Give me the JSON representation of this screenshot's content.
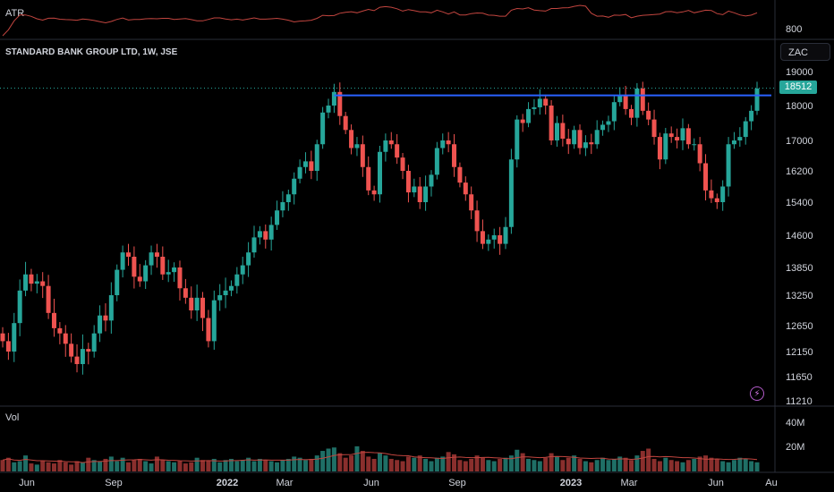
{
  "panes": {
    "atr": {
      "label": "ATR",
      "axis_labels": [
        "800"
      ]
    },
    "main": {
      "title": "STANDARD BANK GROUP LTD, 1W, JSE",
      "currency": "ZAC",
      "last_price": "18512"
    },
    "volume": {
      "label": "Vol",
      "axis_labels": [
        "40M",
        "20M"
      ]
    }
  },
  "colors": {
    "up": "#26a69a",
    "down": "#ef5350",
    "resistance": "#2962ff",
    "ma": "#c2453f",
    "atr": "#c2453f"
  },
  "icons": {
    "alert": "lightning-bolt-icon"
  },
  "chart_data": {
    "type": "candlestick",
    "title": "STANDARD BANK GROUP LTD, 1W, JSE",
    "y_ticks": [
      19000,
      18000,
      17000,
      16200,
      15400,
      14600,
      13850,
      13250,
      12650,
      12150,
      11650,
      11210
    ],
    "y_range": [
      11000,
      19300
    ],
    "x_tick_labels": [
      "Jun",
      "Sep",
      "2022",
      "Mar",
      "Jun",
      "Sep",
      "2023",
      "Mar",
      "Jun",
      "Au"
    ],
    "resistance_level": 18300,
    "last_price": 18512,
    "closes": [
      12350,
      12150,
      12700,
      13350,
      13700,
      13500,
      13550,
      13450,
      12900,
      12600,
      12500,
      12300,
      12050,
      11900,
      12200,
      12150,
      12500,
      12850,
      12750,
      13250,
      13800,
      14200,
      14100,
      13650,
      13550,
      13900,
      14200,
      14100,
      13700,
      13750,
      13850,
      13400,
      13200,
      12950,
      13200,
      12800,
      12350,
      13150,
      13250,
      13350,
      13450,
      13700,
      13900,
      14200,
      14550,
      14700,
      14500,
      14850,
      15200,
      15400,
      15600,
      16000,
      16300,
      16450,
      16200,
      16900,
      17800,
      18000,
      18400,
      17700,
      17300,
      16800,
      16900,
      16300,
      15700,
      15600,
      16700,
      17000,
      16900,
      16550,
      16200,
      15650,
      15800,
      15400,
      15800,
      16100,
      16800,
      17000,
      16900,
      16300,
      15900,
      15600,
      15200,
      14700,
      14400,
      14500,
      14600,
      14400,
      14800,
      16500,
      17600,
      17500,
      17900,
      17950,
      18200,
      18000,
      17000,
      17500,
      17050,
      16900,
      17300,
      16800,
      16950,
      16900,
      17300,
      17450,
      17550,
      18100,
      18300,
      17900,
      17650,
      18500,
      17850,
      17600,
      17100,
      16500,
      17200,
      17100,
      17000,
      17350,
      16900,
      16900,
      16400,
      15700,
      15500,
      15400,
      15800,
      16900,
      17000,
      17100,
      17550,
      17850,
      18500
    ],
    "volume_m": [
      10,
      12,
      8,
      9,
      14,
      7,
      6,
      9,
      8,
      7,
      10,
      8,
      6,
      9,
      8,
      12,
      10,
      9,
      11,
      13,
      9,
      12,
      8,
      10,
      11,
      9,
      7,
      13,
      10,
      9,
      8,
      9,
      7,
      8,
      12,
      10,
      9,
      11,
      8,
      10,
      11,
      9,
      10,
      12,
      9,
      11,
      10,
      9,
      8,
      10,
      11,
      13,
      12,
      10,
      11,
      14,
      18,
      20,
      21,
      16,
      12,
      14,
      22,
      18,
      13,
      11,
      16,
      14,
      11,
      10,
      9,
      13,
      12,
      14,
      11,
      9,
      12,
      13,
      17,
      15,
      10,
      9,
      11,
      14,
      12,
      10,
      9,
      11,
      12,
      14,
      19,
      16,
      11,
      10,
      9,
      12,
      16,
      13,
      10,
      12,
      14,
      11,
      9,
      8,
      10,
      12,
      10,
      11,
      13,
      12,
      10,
      14,
      18,
      20,
      11,
      9,
      12,
      10,
      9,
      8,
      10,
      11,
      13,
      14,
      12,
      11,
      9,
      8,
      10,
      12,
      11,
      9,
      8
    ]
  }
}
